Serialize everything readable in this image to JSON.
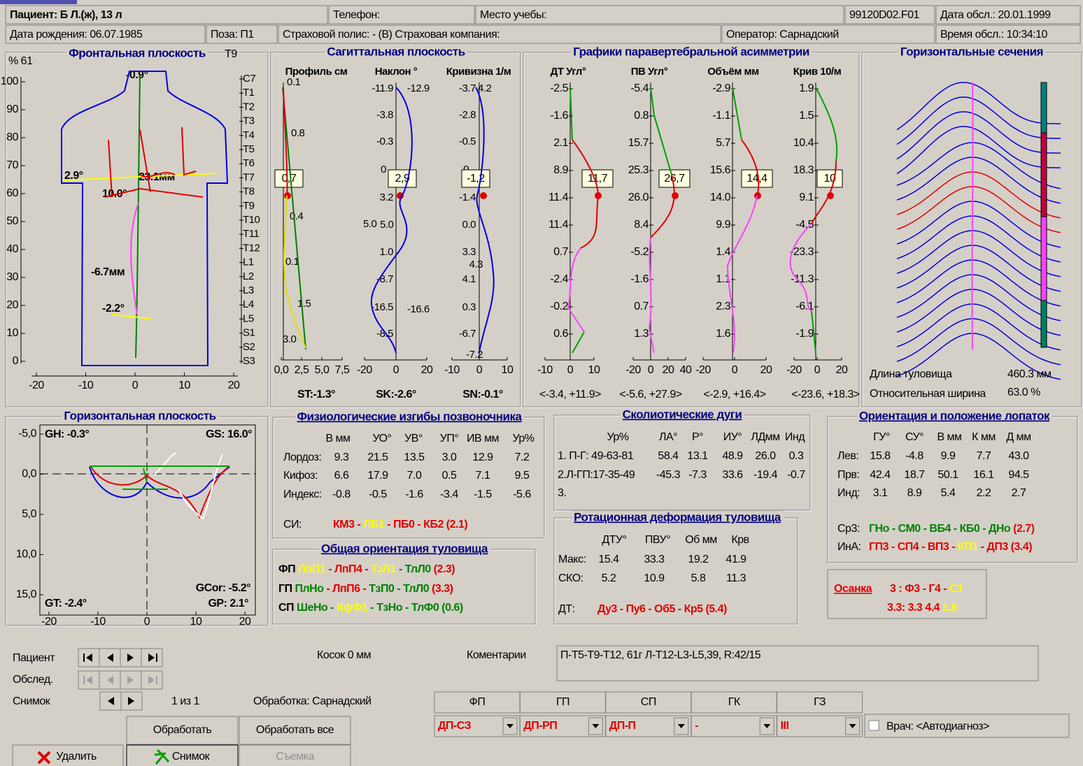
{
  "header": {
    "patient": "Пациент: Б Л.(ж), 13 л",
    "phone": "Телефон:",
    "school": "Место учебы:",
    "file": "99120D02.F01",
    "exam_date": "Дата обсл.: 20.01.1999",
    "birth_date": "Дата рождения: 06.07.1985",
    "pose": "Поза:  П1",
    "policy": "Страховой полис:  -  (В) Страховая компания:",
    "operator": "Оператор: Сарнадский",
    "exam_time": "Время обсл.: 10:34:10"
  },
  "frontal": {
    "title": "Фронтальная плоскость",
    "level": "T9",
    "y_unit": "% 61",
    "yticks": [
      "100",
      "90",
      "80",
      "70",
      "60",
      "50",
      "40",
      "30",
      "20",
      "10",
      "0"
    ],
    "xticks": [
      "-20",
      "-10",
      "0",
      "10",
      "20"
    ],
    "vertebrae": [
      "C7",
      "T1",
      "T2",
      "T3",
      "T4",
      "T5",
      "T6",
      "T7",
      "T8",
      "T9",
      "T10",
      "T11",
      "T12",
      "L1",
      "L2",
      "L3",
      "L4",
      "L5",
      "S1",
      "S2",
      "S3"
    ],
    "annotations": [
      {
        "text": "-0.9°",
        "color": "#e0e000"
      },
      {
        "text": "2.9°",
        "color": "#ffff00"
      },
      {
        "text": "23.1мм",
        "color": "#e00000"
      },
      {
        "text": "10.0°",
        "color": "#e00000"
      },
      {
        "text": "-6.7мм",
        "color": "#e00000"
      },
      {
        "text": "-2.2°",
        "color": "#ffff00"
      }
    ]
  },
  "sagittal": {
    "title": "Сагиттальная плоскость",
    "columns": [
      {
        "name": "Профиль см",
        "labels": [
          "0.1",
          "0.8",
          "0.4",
          "0.1",
          "1.5",
          "3.0"
        ],
        "box": "0,7",
        "xticks": [
          "0,0",
          "2,5",
          "5,0",
          "7,5"
        ],
        "summary": {
          "text": "ST:-1.3°",
          "color": "#008000"
        }
      },
      {
        "name": "Наклон °",
        "labels": [
          "-11.9",
          "-12.9",
          "-3.8",
          "-0.3",
          "0",
          "3.2",
          "5.0",
          "5.0",
          "1.0",
          "-8.7",
          "-16.5",
          "-16.6",
          "-8.5"
        ],
        "box": "2,9",
        "xticks": [
          "-20",
          "0",
          "20"
        ],
        "summary": {
          "text": "SK:-2.6°",
          "color": "#ffff00"
        }
      },
      {
        "name": "Кривизна 1/м",
        "labels": [
          "-3.7",
          "4.2",
          "-2.8",
          "-0.5",
          "0",
          "-1.4",
          "0.0",
          "3.3",
          "4.3",
          "4.1",
          "0.3",
          "-6.7",
          "-7.2"
        ],
        "box": "-1,2",
        "xticks": [
          "-10",
          "0",
          "10"
        ],
        "summary": {
          "text": "SN:-0.1°",
          "color": "#008000"
        }
      }
    ]
  },
  "asymmetry": {
    "title": "Графики паравертебральной асимметрии",
    "columns": [
      {
        "name": "ДТ Угл°",
        "labels": [
          "-2.5",
          "-1.6",
          "2.1",
          "8.9",
          "11.4",
          "11.4",
          "0.7",
          "-2.4",
          "-0.2",
          "0.6"
        ],
        "box": "11,7",
        "xticks": [
          "-10",
          "0",
          "10"
        ],
        "range": "<-3.4, +11.9>"
      },
      {
        "name": "ПВ Угл°",
        "labels": [
          "-5.4",
          "0.8",
          "15.7",
          "25.3",
          "26.0",
          "8.4",
          "-5.2",
          "-1.6",
          "0.7",
          "1.3"
        ],
        "box": "26,7",
        "xticks": [
          "-20",
          "0",
          "20",
          "40"
        ],
        "range": "<-5.6, +27.9>"
      },
      {
        "name": "Объём мм",
        "labels": [
          "-2.9",
          "-1.1",
          "5.7",
          "15.6",
          "14.0",
          "9.9",
          "1.4",
          "1.1",
          "2.3",
          "1.6"
        ],
        "box": "14,4",
        "xticks": [
          "-20",
          "0",
          "20"
        ],
        "range": "<-2.9, +16.4>"
      },
      {
        "name": "Крив 10/м",
        "labels": [
          "1.9",
          "1.5",
          "10.4",
          "18.3",
          "9.1",
          "-4.5",
          "-23.3",
          "-11.3",
          "-6.1",
          "-1.9"
        ],
        "box": "10",
        "xticks": [
          "-20",
          "0",
          "20"
        ],
        "range": "<-23.6, +18.3>"
      }
    ]
  },
  "sections": {
    "title": "Горизонтальные сечения",
    "length_label": "Длина туловища",
    "length": "460.3 мм",
    "width_label": "Относительная ширина",
    "width": "63.0 %"
  },
  "horizontal_plane": {
    "title": "Горизонтальная плоскость",
    "yticks": [
      "-5,0",
      "0,0",
      "5,0",
      "10,0",
      "15,0"
    ],
    "xticks": [
      "-20",
      "-10",
      "0",
      "10",
      "20"
    ],
    "corners": [
      {
        "text": "GH: -0.3°",
        "color": "#00a000"
      },
      {
        "text": "GS: 16.0°",
        "color": "#e00000"
      },
      {
        "text": "GCor: -5.2°",
        "color": "#000000"
      },
      {
        "text": "GT: -2.4°",
        "color": "#00a000"
      },
      {
        "text": "GP: 2.1°",
        "color": "#00a000"
      }
    ]
  },
  "physio": {
    "title": "Физиологические изгибы позвоночника",
    "headers": [
      "В мм",
      "УО°",
      "УВ°",
      "УП°",
      "ИВ мм",
      "Ур%"
    ],
    "rows": [
      {
        "label": "Лордоз:",
        "values": [
          "9.3",
          "21.5",
          "13.5",
          "3.0",
          "12.9",
          "7.2"
        ]
      },
      {
        "label": "Кифоз:",
        "values": [
          "6.6",
          "17.9",
          "7.0",
          "0.5",
          "7.1",
          "9.5"
        ]
      },
      {
        "label": "Индекс:",
        "values": [
          "-0.8",
          "-0.5",
          "-1.6",
          "-3.4",
          "-1.5",
          "-5.6"
        ]
      }
    ],
    "si_label": "СИ:",
    "si": [
      {
        "text": "КМ3 - ",
        "color": "#e00000"
      },
      {
        "text": "ЛБ1",
        "color": "#ffff00"
      },
      {
        "text": " - ПБ0 - КБ2  (2.1)",
        "color": "#e00000"
      }
    ]
  },
  "orientation": {
    "title": "Общая ориентация туловища",
    "rows": [
      [
        {
          "text": "ФП ",
          "color": "#000000"
        },
        {
          "text": "ЛпП1",
          "color": "#ffff00"
        },
        {
          "text": " - ЛпП4 - ",
          "color": "#e00000"
        },
        {
          "text": "ТзЛ1",
          "color": "#ffff00"
        },
        {
          "text": " - ТлЛ0",
          "color": "#008000"
        },
        {
          "text": "   (2.3)",
          "color": "#e00000"
        }
      ],
      [
        {
          "text": "ГП ",
          "color": "#000000"
        },
        {
          "text": "ПлНо",
          "color": "#008000"
        },
        {
          "text": " - ЛпП6 - ",
          "color": "#e00000"
        },
        {
          "text": "ТзП0 - ТлЛ0",
          "color": "#008000"
        },
        {
          "text": "   (3.3)",
          "color": "#e00000"
        }
      ],
      [
        {
          "text": "СП ",
          "color": "#000000"
        },
        {
          "text": "ШеНо - ",
          "color": "#008000"
        },
        {
          "text": "КфФ1",
          "color": "#ffff00"
        },
        {
          "text": " - ТзНо - ТлФ0   (0.6)",
          "color": "#008000"
        }
      ]
    ]
  },
  "scoliotic": {
    "title": "Сколиотические дуги",
    "headers": [
      "Ур%",
      "ЛА°",
      "Р°",
      "ИУ°",
      "ЛДмм",
      "Инд"
    ],
    "rows": [
      [
        "1. П-Г: 49-63-81",
        "58.4",
        "13.1",
        "48.9",
        "26.0",
        "0.3"
      ],
      [
        "2.Л-ГП:17-35-49",
        "-45.3",
        "-7.3",
        "33.6",
        "-19.4",
        "-0.7"
      ],
      [
        "3."
      ]
    ]
  },
  "rotation": {
    "title": "Ротационная деформация туловища",
    "headers": [
      "ДТУ°",
      "ПВУ°",
      "Об мм",
      "Крв"
    ],
    "rows": [
      {
        "label": "Макс:",
        "values": [
          "15.4",
          "33.3",
          "19.2",
          "41.9"
        ]
      },
      {
        "label": "СКО:",
        "values": [
          "5.2",
          "10.9",
          "5.8",
          "11.3"
        ]
      }
    ],
    "dt_label": "ДТ:",
    "dt": [
      {
        "text": "Ду3 - Пу6 - Об5 - Кр5  (5.4)",
        "color": "#e00000"
      }
    ]
  },
  "scapula": {
    "title": "Ориентация и положение лопаток",
    "headers": [
      "ГУ°",
      "СУ°",
      "В мм",
      "К мм",
      "Д мм"
    ],
    "rows": [
      {
        "label": "Лев:",
        "values": [
          "15.8",
          "-4.8",
          "9.9",
          "7.7",
          "43.0"
        ]
      },
      {
        "label": "Прв:",
        "values": [
          "42.4",
          "18.7",
          "50.1",
          "16.1",
          "94.5"
        ]
      },
      {
        "label": "Инд:",
        "values": [
          "3.1",
          "8.9",
          "5.4",
          "2.2",
          "2.7"
        ]
      }
    ],
    "summary": [
      {
        "label": "Ср3:",
        "segments": [
          {
            "text": "ГНо - СМ0 - ВБ4 - КБ0 - ДНо",
            "color": "#008000"
          },
          {
            "text": "  (2.7)",
            "color": "#e00000"
          }
        ]
      },
      {
        "label": "ИнА:",
        "segments": [
          {
            "text": "ГП3 - СП4 - ВП3 - ",
            "color": "#e00000"
          },
          {
            "text": "КП1",
            "color": "#ffff00"
          },
          {
            "text": " - ДП3  (3.4)",
            "color": "#e00000"
          }
        ]
      }
    ]
  },
  "posture": {
    "label": "Осанка",
    "rows": [
      [
        {
          "text": "3  : Ф3 - Г4 - ",
          "color": "#e00000"
        },
        {
          "text": "С1",
          "color": "#ffff00"
        }
      ],
      [
        {
          "text": "3.3: 3.3   4.4",
          "color": "#e00000"
        },
        {
          "text": "   1.8",
          "color": "#ffff00"
        }
      ]
    ]
  },
  "controls": {
    "patient": "Пациент",
    "exam": "Обслед.",
    "snapshot": "Снимок",
    "counter": "1 из  1",
    "kosok": "Косок   0 мм",
    "comments_label": "Коментарии",
    "comments": "П-Т5-Т9-Т12, 61г Л-Т12-L3-L5,39, R:42/15",
    "processing": "Обработка: Сарнадский",
    "process": "Обработать",
    "process_all": "Обработать все",
    "delete": "Удалить",
    "shot": "Снимок",
    "capture": "Съемка",
    "diag_headers": [
      "ФП",
      "ГП",
      "СП",
      "ГК",
      "ГЗ"
    ],
    "diag_values": [
      "ДП-СЗ",
      "ДП-РП",
      "ДП-П",
      "-",
      "III"
    ],
    "doctor": "Врач: <Автодиагноз>"
  }
}
